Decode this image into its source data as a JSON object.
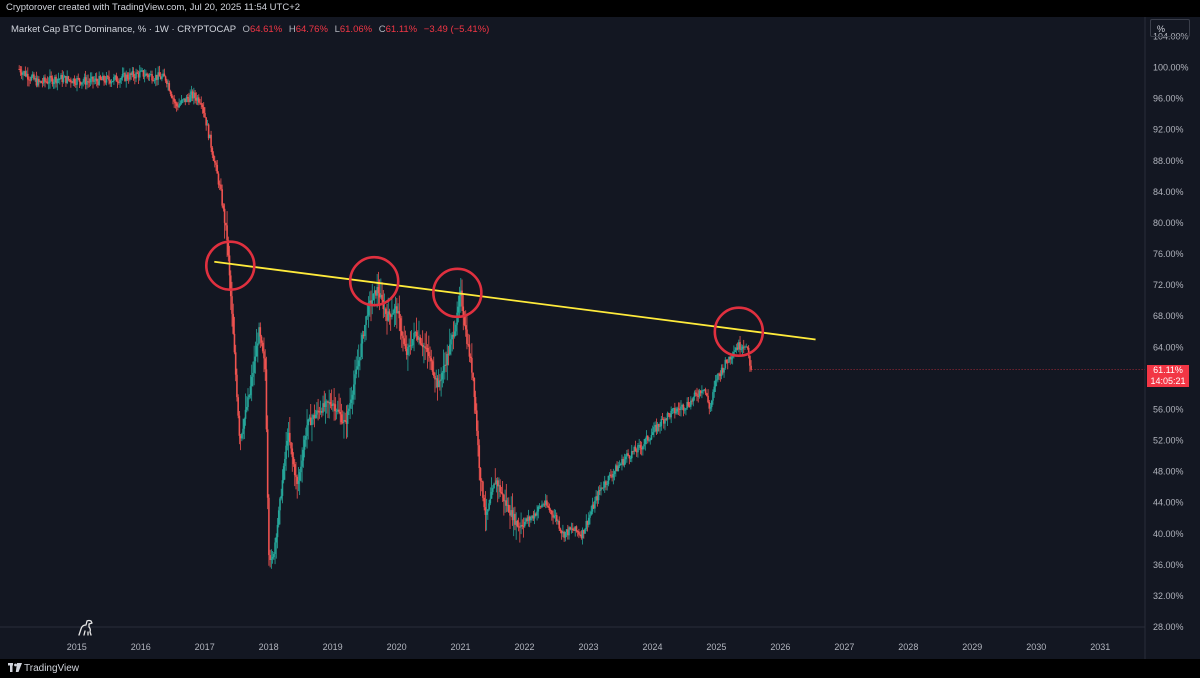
{
  "header": {
    "credit": "Cryptorover created with TradingView.com, Jul 20, 2025 11:54 UTC+2"
  },
  "symbol_bar": {
    "symbol": "Market Cap BTC Dominance, % · 1W · CRYPTOCAP",
    "open_label": "O",
    "open_value": "64.61%",
    "high_label": "H",
    "high_value": "64.76%",
    "low_label": "L",
    "low_value": "61.06%",
    "close_label": "C",
    "close_value": "61.11%",
    "change": "−3.49 (−5.41%)"
  },
  "price_scale_button": "%",
  "current_price": {
    "value": "61.11%",
    "countdown": "14:05:21"
  },
  "footer": {
    "brand": "TradingView"
  },
  "colors": {
    "background": "#131722",
    "up": "#26a69a",
    "down": "#ef5350",
    "trendline": "#ffeb3b",
    "circle": "#e0303f",
    "badge": "#f23645"
  },
  "icons": {
    "footer_logo": "tradingview-logo-icon",
    "corner_mascot": "dinosaur-icon"
  },
  "chart_data": {
    "type": "candlestick",
    "title": "",
    "interval": "1W",
    "y_scale": "percent",
    "grid": false,
    "y_ticks": [
      "104.00%",
      "100.00%",
      "96.00%",
      "92.00%",
      "88.00%",
      "84.00%",
      "80.00%",
      "76.00%",
      "72.00%",
      "68.00%",
      "64.00%",
      "60.00%",
      "56.00%",
      "52.00%",
      "48.00%",
      "44.00%",
      "40.00%",
      "36.00%",
      "32.00%",
      "28.00%"
    ],
    "y_tick_values": [
      104,
      100,
      96,
      92,
      88,
      84,
      80,
      76,
      72,
      68,
      64,
      60,
      56,
      52,
      48,
      44,
      40,
      36,
      32,
      28
    ],
    "x_ticks": [
      "2015",
      "2016",
      "2017",
      "2018",
      "2019",
      "2020",
      "2021",
      "2022",
      "2023",
      "2024",
      "2025",
      "2026",
      "2027",
      "2028",
      "2029",
      "2030",
      "2031"
    ],
    "x_tick_values": [
      2015,
      2016,
      2017,
      2018,
      2019,
      2020,
      2021,
      2022,
      2023,
      2024,
      2025,
      2026,
      2027,
      2028,
      2029,
      2030,
      2031
    ],
    "ylim": [
      28,
      106.5
    ],
    "xlim": [
      2013.8,
      2031.7
    ],
    "price_path": [
      [
        2014.1,
        99.8
      ],
      [
        2014.4,
        98.0
      ],
      [
        2014.7,
        98.6
      ],
      [
        2015.2,
        98.2
      ],
      [
        2015.6,
        98.5
      ],
      [
        2016.0,
        99.2
      ],
      [
        2016.4,
        98.6
      ],
      [
        2016.55,
        95.0
      ],
      [
        2016.8,
        96.4
      ],
      [
        2016.95,
        95.8
      ],
      [
        2017.1,
        90.0
      ],
      [
        2017.25,
        84.0
      ],
      [
        2017.35,
        78.0
      ],
      [
        2017.45,
        65.0
      ],
      [
        2017.55,
        52.0
      ],
      [
        2017.7,
        58.0
      ],
      [
        2017.85,
        66.0
      ],
      [
        2017.95,
        61.0
      ],
      [
        2018.0,
        38.0
      ],
      [
        2018.05,
        36.0
      ],
      [
        2018.15,
        42.0
      ],
      [
        2018.3,
        53.0
      ],
      [
        2018.45,
        46.0
      ],
      [
        2018.6,
        54.0
      ],
      [
        2018.8,
        56.0
      ],
      [
        2019.0,
        57.0
      ],
      [
        2019.2,
        54.0
      ],
      [
        2019.4,
        62.0
      ],
      [
        2019.55,
        69.0
      ],
      [
        2019.7,
        71.5
      ],
      [
        2019.85,
        68.0
      ],
      [
        2020.0,
        69.0
      ],
      [
        2020.15,
        63.0
      ],
      [
        2020.3,
        66.0
      ],
      [
        2020.5,
        63.0
      ],
      [
        2020.65,
        59.0
      ],
      [
        2020.8,
        63.0
      ],
      [
        2020.95,
        68.0
      ],
      [
        2021.0,
        71.0
      ],
      [
        2021.1,
        65.0
      ],
      [
        2021.2,
        60.0
      ],
      [
        2021.3,
        48.0
      ],
      [
        2021.4,
        42.0
      ],
      [
        2021.55,
        47.0
      ],
      [
        2021.7,
        44.0
      ],
      [
        2021.9,
        41.0
      ],
      [
        2022.1,
        42.0
      ],
      [
        2022.3,
        44.0
      ],
      [
        2022.5,
        42.0
      ],
      [
        2022.6,
        40.0
      ],
      [
        2022.75,
        40.5
      ],
      [
        2022.9,
        40.0
      ],
      [
        2023.05,
        43.0
      ],
      [
        2023.2,
        46.0
      ],
      [
        2023.4,
        48.0
      ],
      [
        2023.6,
        50.0
      ],
      [
        2023.8,
        51.0
      ],
      [
        2024.0,
        53.0
      ],
      [
        2024.2,
        55.0
      ],
      [
        2024.4,
        56.0
      ],
      [
        2024.6,
        57.0
      ],
      [
        2024.8,
        59.0
      ],
      [
        2024.9,
        56.0
      ],
      [
        2025.0,
        60.0
      ],
      [
        2025.15,
        62.0
      ],
      [
        2025.3,
        64.0
      ],
      [
        2025.45,
        64.5
      ],
      [
        2025.55,
        61.11
      ]
    ],
    "trendline": {
      "from": [
        2017.15,
        75.0
      ],
      "to": [
        2026.55,
        65.0
      ]
    },
    "highlight_circles": [
      [
        2017.4,
        74.5
      ],
      [
        2019.65,
        72.5
      ],
      [
        2020.95,
        71.0
      ],
      [
        2025.35,
        66.0
      ]
    ],
    "last_close": 61.11
  }
}
